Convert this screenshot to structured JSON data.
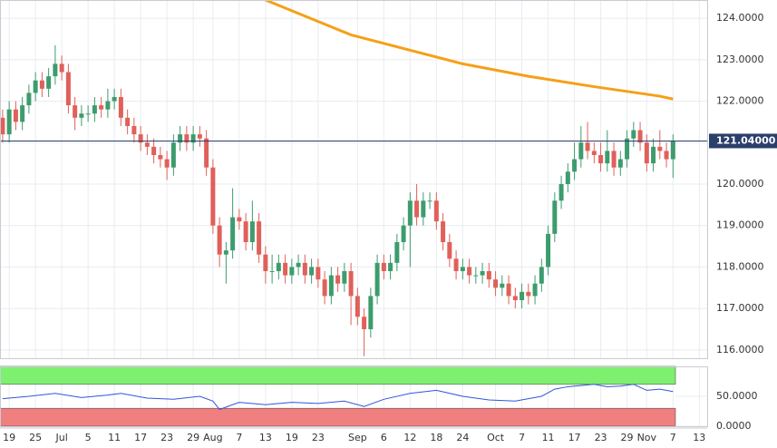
{
  "chart_data": [
    {
      "type": "candlestick",
      "xlim": [
        -0.4,
        107.2
      ],
      "xticks": [
        {
          "value": 1,
          "label": "19"
        },
        {
          "value": 5,
          "label": "25"
        },
        {
          "value": 9,
          "label": "Jul"
        },
        {
          "value": 13,
          "label": "5"
        },
        {
          "value": 17,
          "label": "11"
        },
        {
          "value": 21,
          "label": "17"
        },
        {
          "value": 25,
          "label": "23"
        },
        {
          "value": 29,
          "label": "29"
        },
        {
          "value": 32,
          "label": "Aug"
        },
        {
          "value": 36,
          "label": "7"
        },
        {
          "value": 40,
          "label": "13"
        },
        {
          "value": 44,
          "label": "19"
        },
        {
          "value": 48,
          "label": "23"
        },
        {
          "value": 54,
          "label": "Sep"
        },
        {
          "value": 58,
          "label": "6"
        },
        {
          "value": 62,
          "label": "12"
        },
        {
          "value": 66,
          "label": "18"
        },
        {
          "value": 70,
          "label": "24"
        },
        {
          "value": 75,
          "label": "Oct"
        },
        {
          "value": 79,
          "label": "7"
        },
        {
          "value": 83,
          "label": "11"
        },
        {
          "value": 87,
          "label": "17"
        },
        {
          "value": 91,
          "label": "23"
        },
        {
          "value": 95,
          "label": "29"
        },
        {
          "value": 98,
          "label": "Nov"
        },
        {
          "value": 102,
          "label": "7"
        },
        {
          "value": 106,
          "label": "13"
        }
      ],
      "ylim": [
        115.8,
        124.44
      ],
      "yticks": [
        {
          "value": 116,
          "label": "116.0000"
        },
        {
          "value": 117,
          "label": "117.0000"
        },
        {
          "value": 118,
          "label": "118.0000"
        },
        {
          "value": 119,
          "label": "119.0000"
        },
        {
          "value": 120,
          "label": "120.0000"
        },
        {
          "value": 121,
          "label": "121.0000"
        },
        {
          "value": 122,
          "label": "122.0000"
        },
        {
          "value": 123,
          "label": "123.0000"
        },
        {
          "value": 124,
          "label": "124.0000"
        }
      ],
      "grid": true,
      "up_color": "#3d9c6e",
      "down_color": "#e0605a",
      "candles": {
        "open": [
          121.6,
          121.2,
          121.8,
          121.5,
          121.9,
          122.2,
          122.5,
          122.3,
          122.6,
          122.9,
          122.7,
          121.9,
          121.6,
          121.7,
          121.7,
          121.9,
          121.8,
          122.0,
          122.1,
          121.6,
          121.4,
          121.2,
          121.0,
          120.9,
          120.7,
          120.6,
          120.4,
          121.0,
          121.2,
          121.0,
          121.2,
          121.1,
          120.4,
          119.0,
          118.3,
          118.4,
          119.2,
          119.1,
          118.6,
          119.1,
          118.3,
          117.9,
          117.9,
          118.1,
          117.8,
          118.0,
          118.1,
          117.8,
          118.0,
          117.7,
          117.3,
          117.8,
          117.6,
          117.9,
          117.3,
          116.8,
          116.5,
          117.3,
          118.1,
          117.9,
          118.1,
          118.6,
          119.0,
          119.6,
          119.2,
          119.6,
          119.6,
          119.1,
          118.6,
          118.2,
          117.9,
          118.0,
          117.8,
          117.8,
          117.9,
          117.7,
          117.5,
          117.6,
          117.3,
          117.2,
          117.4,
          117.3,
          117.6,
          118.0,
          118.8,
          119.6,
          120.0,
          120.3,
          120.6,
          121.0,
          120.8,
          120.7,
          120.5,
          120.8,
          120.4,
          120.6,
          121.1,
          121.3,
          121.0,
          120.5,
          120.9,
          120.8,
          120.6
        ],
        "high": [
          121.8,
          122.0,
          122.0,
          122.1,
          122.4,
          122.7,
          122.7,
          122.8,
          123.35,
          123.1,
          122.9,
          122.1,
          121.9,
          121.9,
          122.1,
          122.1,
          122.3,
          122.3,
          122.3,
          121.8,
          121.6,
          121.4,
          121.2,
          121.1,
          120.9,
          120.8,
          121.2,
          121.4,
          121.4,
          121.4,
          121.4,
          121.3,
          120.6,
          119.2,
          118.6,
          119.9,
          119.4,
          119.3,
          119.6,
          119.3,
          118.5,
          118.3,
          118.3,
          118.3,
          118.2,
          118.3,
          118.3,
          118.2,
          118.2,
          117.9,
          118.0,
          118.0,
          118.1,
          118.1,
          117.5,
          117.0,
          117.5,
          118.3,
          118.3,
          118.3,
          118.8,
          119.2,
          119.8,
          120.0,
          119.8,
          119.8,
          119.8,
          119.3,
          118.8,
          118.4,
          118.2,
          118.2,
          118.0,
          118.1,
          118.1,
          117.9,
          117.8,
          117.8,
          117.5,
          117.6,
          117.6,
          117.8,
          118.2,
          119.0,
          119.8,
          120.2,
          120.5,
          121.0,
          121.4,
          121.5,
          121.0,
          121.0,
          121.3,
          121.0,
          120.8,
          121.3,
          121.5,
          121.5,
          121.2,
          121.1,
          121.3,
          121.0,
          121.2
        ],
        "low": [
          121.0,
          121.0,
          121.3,
          121.3,
          121.7,
          122.0,
          122.1,
          122.1,
          122.4,
          122.5,
          121.7,
          121.3,
          121.4,
          121.5,
          121.5,
          121.6,
          121.6,
          121.8,
          121.4,
          121.2,
          121.0,
          120.8,
          120.7,
          120.5,
          120.4,
          120.1,
          120.2,
          120.8,
          120.8,
          120.8,
          120.9,
          120.2,
          118.8,
          118.0,
          117.6,
          118.2,
          118.9,
          118.4,
          118.4,
          118.1,
          117.6,
          117.6,
          117.7,
          117.6,
          117.6,
          117.8,
          117.6,
          117.6,
          117.5,
          117.1,
          117.1,
          117.4,
          117.4,
          116.6,
          116.6,
          115.85,
          116.3,
          117.1,
          117.7,
          117.7,
          117.9,
          118.4,
          118.0,
          119.0,
          119.0,
          119.4,
          118.9,
          118.4,
          118.0,
          117.7,
          117.7,
          117.6,
          117.6,
          117.6,
          117.5,
          117.3,
          117.3,
          117.1,
          117.0,
          117.0,
          117.1,
          117.1,
          117.4,
          117.8,
          118.6,
          119.4,
          119.8,
          120.1,
          120.4,
          120.6,
          120.5,
          120.3,
          120.3,
          120.2,
          120.2,
          120.4,
          120.9,
          120.8,
          120.3,
          120.3,
          120.6,
          120.4,
          120.15
        ],
        "close": [
          121.2,
          121.8,
          121.5,
          121.9,
          122.2,
          122.5,
          122.3,
          122.6,
          122.9,
          122.7,
          121.9,
          121.6,
          121.7,
          121.7,
          121.9,
          121.8,
          122.0,
          122.1,
          121.6,
          121.4,
          121.2,
          121.0,
          120.9,
          120.7,
          120.6,
          120.4,
          121.0,
          121.2,
          121.0,
          121.2,
          121.1,
          120.4,
          119.0,
          118.3,
          118.4,
          119.2,
          119.1,
          118.6,
          119.1,
          118.3,
          117.9,
          117.9,
          118.1,
          117.8,
          118.0,
          118.1,
          117.8,
          118.0,
          117.7,
          117.3,
          117.8,
          117.6,
          117.9,
          117.3,
          116.8,
          116.5,
          117.3,
          118.1,
          117.9,
          118.1,
          118.6,
          119.0,
          119.6,
          119.2,
          119.6,
          119.6,
          119.1,
          118.6,
          118.2,
          117.9,
          118.0,
          117.8,
          117.8,
          117.9,
          117.7,
          117.5,
          117.6,
          117.3,
          117.2,
          117.4,
          117.3,
          117.6,
          118.0,
          118.8,
          119.6,
          120.0,
          120.3,
          120.6,
          121.0,
          120.8,
          120.7,
          120.5,
          120.8,
          120.4,
          120.6,
          121.1,
          121.3,
          121.0,
          120.5,
          120.9,
          120.8,
          120.6,
          121.04
        ]
      },
      "moving_average": {
        "color": "#f5a01a",
        "x": [
          40,
          53,
          70,
          80,
          90,
          100,
          102
        ],
        "values": [
          124.44,
          123.6,
          122.9,
          122.6,
          122.35,
          122.12,
          122.05
        ]
      },
      "last_price": {
        "value": 121.04,
        "label": "121.04000",
        "color": "#2b3f6b"
      }
    },
    {
      "type": "line",
      "ylim": [
        0,
        100
      ],
      "yticks": [
        {
          "value": 0,
          "label": "0.0000"
        },
        {
          "value": 50,
          "label": "50.0000"
        }
      ],
      "bands": [
        {
          "range": [
            70,
            100
          ],
          "color": "#7df06f"
        },
        {
          "range": [
            0,
            30
          ],
          "color": "#f07f7f"
        }
      ],
      "color": "#3355dd",
      "x": [
        0,
        4,
        8,
        12,
        16,
        18,
        22,
        26,
        30,
        32,
        33,
        36,
        40,
        44,
        48,
        52,
        54,
        55,
        58,
        62,
        66,
        70,
        74,
        78,
        82,
        84,
        86,
        88,
        90,
        92,
        94,
        96,
        98,
        100,
        102
      ],
      "values": [
        46,
        50,
        55,
        48,
        52,
        55,
        47,
        45,
        50,
        42,
        28,
        40,
        36,
        40,
        38,
        42,
        36,
        33,
        45,
        55,
        60,
        50,
        44,
        42,
        50,
        62,
        66,
        68,
        70,
        66,
        67,
        70,
        60,
        62,
        58
      ]
    }
  ]
}
